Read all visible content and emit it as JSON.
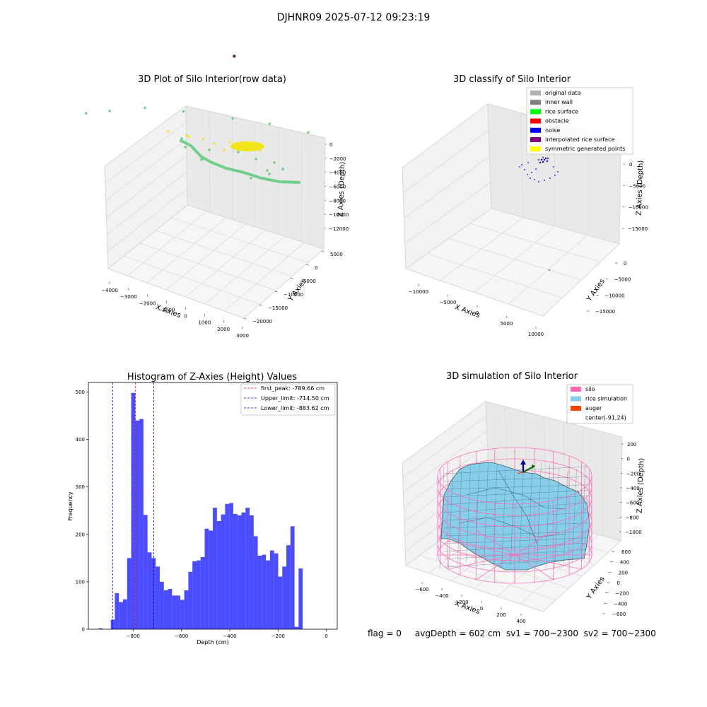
{
  "figure": {
    "title": "DJHNR09 2025-07-12 09:23:19",
    "footer": "flag = 0     avgDepth = 602 cm  sv1 = 700~2300  sv2 = 700~2300"
  },
  "chart_data": [
    {
      "type": "scatter",
      "title": "3D Plot of Silo Interior(row data)",
      "xlabel": "X Axies",
      "ylabel": "Y Axies",
      "zlabel": "Z Axies (Depth)",
      "x_ticks": [
        "−4000",
        "−3000",
        "−2000",
        "−1000",
        "0",
        "1000",
        "2000",
        "3000"
      ],
      "y_ticks": [
        "5000",
        "0",
        "−5000",
        "−10000",
        "−15000",
        "−20000"
      ],
      "z_ticks": [
        "0",
        "−2000",
        "−4000",
        "−6000",
        "−8000",
        "−10000",
        "−12000"
      ],
      "series": [
        {
          "color": "#5cc97a",
          "values": [
            [
              -3200,
              -300,
              -900
            ],
            [
              -2500,
              -1000,
              -1800
            ],
            [
              -1500,
              -2500,
              -3200
            ],
            [
              -500,
              -5000,
              -4200
            ],
            [
              800,
              -8000,
              -5200
            ],
            [
              1800,
              -10000,
              -5900
            ],
            [
              2800,
              -12500,
              -6400
            ]
          ]
        },
        {
          "color": "#f2e51b",
          "values": [
            [
              -200,
              2500,
              -600
            ],
            [
              400,
              1800,
              -700
            ],
            [
              800,
              1200,
              -900
            ],
            [
              300,
              1500,
              -800
            ]
          ]
        },
        {
          "color": "#4b0055",
          "values": [
            [
              100,
              -15000,
              -12500
            ]
          ]
        }
      ]
    },
    {
      "type": "scatter",
      "title": "3D classify of Silo Interior",
      "xlabel": "X Axies",
      "ylabel": "Y Axies",
      "zlabel": "Z Axies (Depth)",
      "x_ticks": [
        "−10000",
        "−5000",
        "0",
        "5000",
        "10000"
      ],
      "y_ticks": [
        "0",
        "−5000",
        "−10000",
        "−15000"
      ],
      "z_ticks": [
        "0",
        "−5000",
        "−10000",
        "−15000"
      ],
      "legend": {
        "placement": "top-right",
        "entries": [
          {
            "label": "original data",
            "color": "#b0b0b0"
          },
          {
            "label": "inner wall",
            "color": "#808080"
          },
          {
            "label": "rice surface",
            "color": "#00ff00"
          },
          {
            "label": "obstacle",
            "color": "#ff0000"
          },
          {
            "label": "noise",
            "color": "#0000ff"
          },
          {
            "label": "interpolated rice surface",
            "color": "#800080"
          },
          {
            "label": "symmetric generated points",
            "color": "#ffff00"
          }
        ]
      }
    },
    {
      "type": "bar",
      "title": "Histogram of Z-Axies (Height) Values",
      "xlabel": "Depth (cm)",
      "ylabel": "Frequency",
      "x_ticks": [
        "−800",
        "−600",
        "−400",
        "−200",
        "0"
      ],
      "y_ticks": [
        "0",
        "100",
        "200",
        "300",
        "400",
        "500"
      ],
      "xlim": [
        -985,
        45
      ],
      "ylim": [
        0,
        520
      ],
      "bin_start": -943,
      "bin_width": 16.9,
      "values": [
        2,
        0,
        0,
        20,
        76,
        57,
        63,
        150,
        498,
        440,
        443,
        241,
        162,
        150,
        132,
        100,
        82,
        85,
        71,
        71,
        62,
        82,
        121,
        143,
        145,
        152,
        212,
        208,
        256,
        228,
        242,
        264,
        266,
        243,
        240,
        246,
        256,
        240,
        196,
        155,
        157,
        145,
        166,
        160,
        111,
        132,
        177,
        217,
        5,
        128
      ],
      "bar_color": "#0000ff",
      "reference_lines": [
        {
          "label": "first_peak: -789.66 cm",
          "value": -789.66,
          "color": "#ff0000"
        },
        {
          "label": "Upper_limit: -714.50 cm",
          "value": -714.5,
          "color": "#0000ff"
        },
        {
          "label": "Lower_limit: -883.62 cm",
          "value": -883.62,
          "color": "#0000ff"
        }
      ]
    },
    {
      "type": "area",
      "title": "3D simulation of Silo Interior",
      "xlabel": "X Axies",
      "ylabel": "Y Axies",
      "zlabel": "Z Axies (Depth)",
      "x_ticks": [
        "−600",
        "−400",
        "−200",
        "0",
        "200",
        "400"
      ],
      "y_ticks": [
        "600",
        "400",
        "200",
        "0",
        "−200",
        "−400",
        "−600"
      ],
      "z_ticks": [
        "200",
        "0",
        "−200",
        "−400",
        "−600",
        "−800",
        "−1000"
      ],
      "legend": {
        "placement": "top-right",
        "entries": [
          {
            "label": "silo",
            "color": "#ff69b4"
          },
          {
            "label": "rice simulation",
            "color": "#87ceeb"
          },
          {
            "label": "auger",
            "color": "#ff4500"
          },
          {
            "label": "center(-91,24)",
            "color": ""
          }
        ]
      }
    }
  ]
}
